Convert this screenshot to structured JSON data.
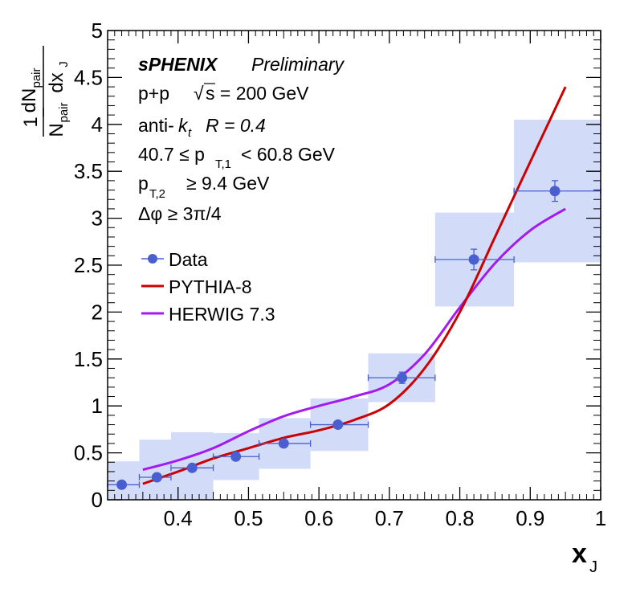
{
  "chart_data": {
    "type": "scatter",
    "x": {
      "label": "x",
      "label_sub": "J",
      "range": [
        0.3,
        1.0
      ],
      "ticks": [
        "0.4",
        "0.5",
        "0.6",
        "0.7",
        "0.8",
        "0.9",
        "1"
      ]
    },
    "y": {
      "label_num_a": "dN",
      "label_num_sub": "pair",
      "label_den_a": "N",
      "label_den_sub": "pair",
      "label_dx": "dx",
      "label_dx_sub": "J",
      "label_one": "1",
      "range": [
        0,
        5
      ],
      "ticks": [
        "0",
        "0.5",
        "1",
        "1.5",
        "2",
        "2.5",
        "3",
        "3.5",
        "4",
        "4.5",
        "5"
      ]
    },
    "annotations": {
      "experiment": "sPHENIX",
      "status": "Preliminary",
      "system": "p+p",
      "sqrt_s": "s = 200 GeV",
      "algo_prefix": "anti-",
      "algo_k": "k",
      "algo_k_sub": "t",
      "radius": "R = 0.4",
      "pt1_pre": "40.7 ≤ p",
      "pt1_sub": "T,1",
      "pt1_post": "< 60.8 GeV",
      "pt2_pre": "p",
      "pt2_sub": "T,2",
      "pt2_post": "≥ 9.4 GeV",
      "dphi": "Δφ ≥ 3π/4"
    },
    "legend": {
      "data": "Data",
      "pythia": "PYTHIA-8",
      "herwig": "HERWIG 7.3"
    },
    "colors": {
      "data": "#4a5fcf",
      "syst_band": "#d2dcf8",
      "pythia": "#cc0000",
      "herwig": "#a31bf0"
    },
    "series": [
      {
        "name": "Data",
        "points": [
          {
            "x": 0.32,
            "y": 0.16,
            "xlo": 0.3,
            "xhi": 0.345,
            "stat": 0.0,
            "syst": 0.25
          },
          {
            "x": 0.37,
            "y": 0.24,
            "xlo": 0.345,
            "xhi": 0.39,
            "stat": 0.0,
            "syst": 0.4
          },
          {
            "x": 0.42,
            "y": 0.34,
            "xlo": 0.39,
            "xhi": 0.45,
            "stat": 0.0,
            "syst": 0.38
          },
          {
            "x": 0.482,
            "y": 0.46,
            "xlo": 0.45,
            "xhi": 0.515,
            "stat": 0.0,
            "syst": 0.25
          },
          {
            "x": 0.55,
            "y": 0.6,
            "xlo": 0.515,
            "xhi": 0.588,
            "stat": 0.0,
            "syst": 0.27
          },
          {
            "x": 0.627,
            "y": 0.8,
            "xlo": 0.588,
            "xhi": 0.67,
            "stat": 0.0,
            "syst": 0.28
          },
          {
            "x": 0.718,
            "y": 1.3,
            "xlo": 0.67,
            "xhi": 0.765,
            "stat": 0.06,
            "syst": 0.26
          },
          {
            "x": 0.82,
            "y": 2.56,
            "xlo": 0.765,
            "xhi": 0.877,
            "stat": 0.11,
            "syst": 0.5
          },
          {
            "x": 0.935,
            "y": 3.29,
            "xlo": 0.877,
            "xhi": 1.0,
            "stat": 0.11,
            "syst": 0.76
          }
        ]
      },
      {
        "name": "PYTHIA-8",
        "x": [
          0.35,
          0.4,
          0.45,
          0.5,
          0.55,
          0.6,
          0.65,
          0.7,
          0.75,
          0.8,
          0.85,
          0.9,
          0.95
        ],
        "y": [
          0.17,
          0.3,
          0.44,
          0.55,
          0.66,
          0.74,
          0.85,
          1.02,
          1.4,
          2.0,
          2.8,
          3.6,
          4.4
        ]
      },
      {
        "name": "HERWIG 7.3",
        "x": [
          0.35,
          0.4,
          0.45,
          0.5,
          0.55,
          0.6,
          0.65,
          0.7,
          0.75,
          0.8,
          0.85,
          0.9,
          0.95
        ],
        "y": [
          0.32,
          0.42,
          0.55,
          0.73,
          0.89,
          1.0,
          1.1,
          1.23,
          1.55,
          2.05,
          2.52,
          2.87,
          3.1
        ]
      }
    ]
  }
}
